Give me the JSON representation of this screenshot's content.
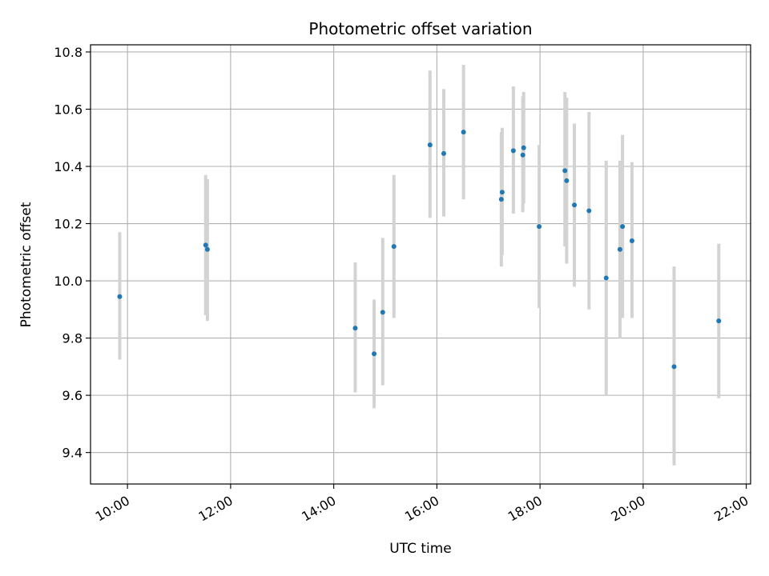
{
  "chart_data": {
    "type": "scatter",
    "title": "Photometric offset variation",
    "xlabel": "UTC time",
    "ylabel": "Photometric offset",
    "grid": true,
    "xlim": [
      "09:17",
      "22:05"
    ],
    "ylim": [
      9.29,
      10.825
    ],
    "x_ticks": [
      "10:00",
      "12:00",
      "14:00",
      "16:00",
      "18:00",
      "20:00",
      "22:00"
    ],
    "y_ticks": [
      9.4,
      9.6,
      9.8,
      10.0,
      10.2,
      10.4,
      10.6,
      10.8
    ],
    "y_tick_labels": [
      "9.4",
      "9.6",
      "9.8",
      "10.0",
      "10.2",
      "10.4",
      "10.6",
      "10.8"
    ],
    "point_color": "#1f77b4",
    "errorbar_color": "#d3d3d3",
    "points": [
      {
        "x": "09:51",
        "y": 9.945,
        "low": 9.725,
        "high": 10.17
      },
      {
        "x": "11:31",
        "y": 10.125,
        "low": 9.88,
        "high": 10.37
      },
      {
        "x": "11:33",
        "y": 10.11,
        "low": 9.86,
        "high": 10.355
      },
      {
        "x": "14:25",
        "y": 9.835,
        "low": 9.61,
        "high": 10.065
      },
      {
        "x": "14:47",
        "y": 9.745,
        "low": 9.555,
        "high": 9.935
      },
      {
        "x": "14:57",
        "y": 9.89,
        "low": 9.635,
        "high": 10.15
      },
      {
        "x": "15:10",
        "y": 10.12,
        "low": 9.87,
        "high": 10.37
      },
      {
        "x": "15:52",
        "y": 10.475,
        "low": 10.22,
        "high": 10.735
      },
      {
        "x": "16:08",
        "y": 10.445,
        "low": 10.225,
        "high": 10.67
      },
      {
        "x": "16:31",
        "y": 10.52,
        "low": 10.285,
        "high": 10.755
      },
      {
        "x": "17:15",
        "y": 10.285,
        "low": 10.05,
        "high": 10.52
      },
      {
        "x": "17:16",
        "y": 10.31,
        "low": 10.09,
        "high": 10.535
      },
      {
        "x": "17:29",
        "y": 10.455,
        "low": 10.235,
        "high": 10.68
      },
      {
        "x": "17:40",
        "y": 10.44,
        "low": 10.24,
        "high": 10.645
      },
      {
        "x": "17:41",
        "y": 10.465,
        "low": 10.27,
        "high": 10.66
      },
      {
        "x": "17:59",
        "y": 10.19,
        "low": 9.905,
        "high": 10.475
      },
      {
        "x": "18:29",
        "y": 10.385,
        "low": 10.12,
        "high": 10.66
      },
      {
        "x": "18:31",
        "y": 10.35,
        "low": 10.06,
        "high": 10.64
      },
      {
        "x": "18:40",
        "y": 10.265,
        "low": 9.98,
        "high": 10.55
      },
      {
        "x": "18:57",
        "y": 10.245,
        "low": 9.9,
        "high": 10.59
      },
      {
        "x": "19:17",
        "y": 10.01,
        "low": 9.6,
        "high": 10.42
      },
      {
        "x": "19:33",
        "y": 10.11,
        "low": 9.8,
        "high": 10.42
      },
      {
        "x": "19:36",
        "y": 10.19,
        "low": 9.87,
        "high": 10.51
      },
      {
        "x": "19:47",
        "y": 10.14,
        "low": 9.87,
        "high": 10.415
      },
      {
        "x": "20:36",
        "y": 9.7,
        "low": 9.355,
        "high": 10.05
      },
      {
        "x": "21:28",
        "y": 9.86,
        "low": 9.59,
        "high": 10.13
      }
    ]
  }
}
